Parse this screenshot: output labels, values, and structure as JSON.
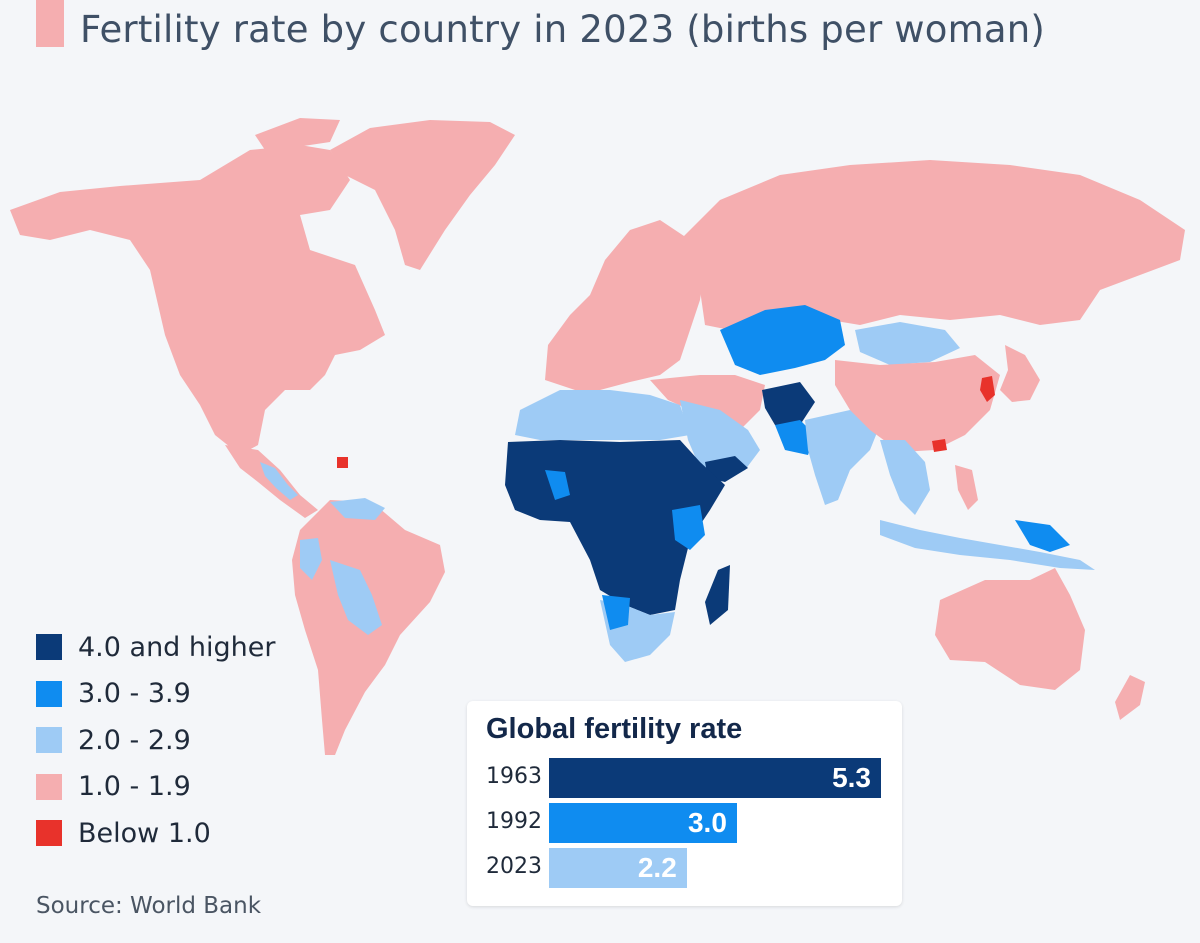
{
  "title": "Fertility rate by country in 2023 (births per woman)",
  "legend": [
    {
      "label": "4.0 and higher",
      "color": "#0b3a78"
    },
    {
      "label": "3.0 - 3.9",
      "color": "#0f8cf0"
    },
    {
      "label": "2.0 - 2.9",
      "color": "#9ecbf5"
    },
    {
      "label": "1.0 - 1.9",
      "color": "#f5aeb0"
    },
    {
      "label": "Below 1.0",
      "color": "#e8322b"
    }
  ],
  "source": "Source: World Bank",
  "inset": {
    "title": "Global fertility rate",
    "bars": [
      {
        "year": "1963",
        "value": 5.3,
        "label": "5.3",
        "color": "#0b3a78"
      },
      {
        "year": "1992",
        "value": 3.0,
        "label": "3.0",
        "color": "#0f8cf0"
      },
      {
        "year": "2023",
        "value": 2.2,
        "label": "2.2",
        "color": "#9ecbf5"
      }
    ]
  }
}
